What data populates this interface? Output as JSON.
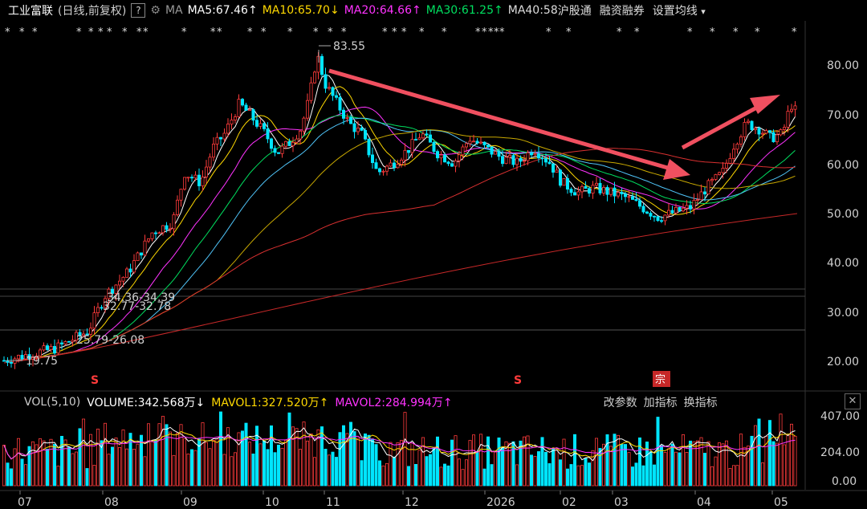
{
  "header": {
    "stock_name": "工业富联",
    "mode": "(日线,前复权)",
    "help": "?",
    "ma_label": "MA",
    "ma5": "MA5:67.46",
    "ma10": "MA10:65.70",
    "ma20": "MA20:64.66",
    "ma30": "MA30:61.25",
    "ma40": "MA40:58",
    "hgt": "沪股通",
    "margin": "融资融券",
    "settings": "设置均线",
    "arrow_up": "↑",
    "arrow_down": "↓",
    "dropdown": "▾"
  },
  "colors": {
    "ma5": "#ffffff",
    "ma10": "#ffd900",
    "ma20": "#ff33ff",
    "ma30": "#00e060",
    "ma40": "#4fc3f7",
    "ma60": "#c8a800",
    "ma120": "#d93030",
    "up": "#ff3b3b",
    "down": "#00e5ff",
    "arrow": "#f05060"
  },
  "price_axis": {
    "ticks": [
      "80.00",
      "70.00",
      "60.00",
      "50.00",
      "40.00",
      "30.00",
      "20.00"
    ]
  },
  "annotations": {
    "high": "83.55",
    "low": "19.75",
    "band1": "34.36-34.39",
    "band2": "32.77-32.78",
    "band3": "25.79-26.08",
    "s_mark": "S",
    "zong_mark": "宗",
    "star": "*",
    "dagger": "↓"
  },
  "volume": {
    "label": "VOL(5,10)",
    "volume": "VOLUME:342.568万",
    "mavol1": "MAVOL1:327.520万",
    "mavol2": "MAVOL2:284.994万",
    "down_arrow": "↓",
    "up_arrow": "↑",
    "btn_params": "改参数",
    "btn_add": "加指标",
    "btn_switch": "换指标",
    "close": "✕",
    "axis": [
      "407.00",
      "204.00",
      "0.00"
    ]
  },
  "months": [
    "07",
    "08",
    "09",
    "10",
    "11",
    "12",
    "2026",
    "02",
    "03",
    "04",
    "05"
  ]
}
